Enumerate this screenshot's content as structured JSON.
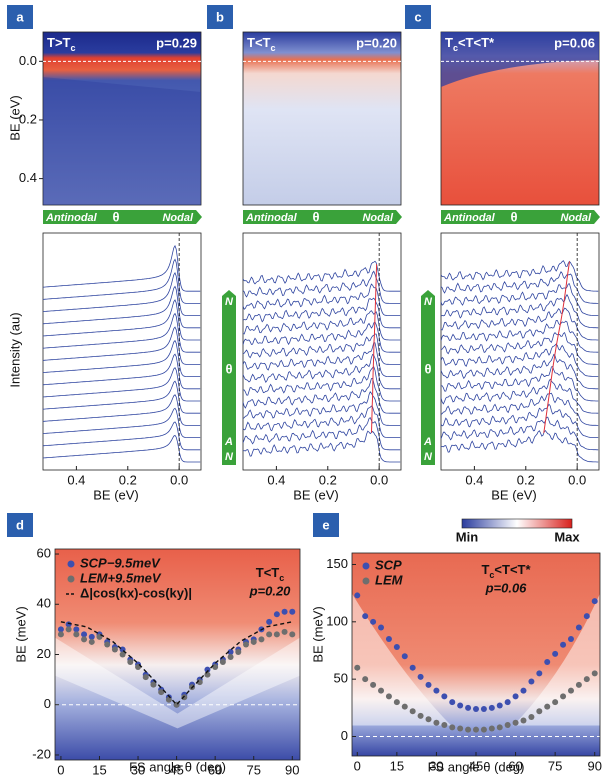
{
  "figure": {
    "top": {
      "y_label": "BE (eV)",
      "ylim": [
        -0.1,
        0.49
      ],
      "yticks": [
        {
          "value": 0,
          "label": "0.0"
        },
        {
          "value": 0.2,
          "label": "0.2"
        },
        {
          "value": 0.4,
          "label": "0.4"
        }
      ],
      "bar_labels": [
        "Antinodal",
        "θ",
        "Nodal"
      ],
      "panels": [
        {
          "letter": "a",
          "condition": [
            {
              "text": "T>T"
            },
            {
              "text": "c",
              "sub": true
            }
          ],
          "doping": "p=0.29"
        },
        {
          "letter": "b",
          "condition": [
            {
              "text": "T<T"
            },
            {
              "text": "c",
              "sub": true
            }
          ],
          "doping": "p=0.20"
        },
        {
          "letter": "c",
          "condition": [
            {
              "text": "T"
            },
            {
              "text": "c",
              "sub": true
            },
            {
              "text": "<T<T*"
            }
          ],
          "doping": "p=0.06"
        }
      ]
    },
    "middle": {
      "y_label": "Intensity (au)",
      "x_label": "BE (eV)",
      "xlim": [
        0.53,
        -0.085
      ],
      "xticks": [
        {
          "value": 0.4,
          "label": "0.4"
        },
        {
          "value": 0.2,
          "label": "0.2"
        },
        {
          "value": 0,
          "label": "0.0"
        }
      ],
      "bar_labels": [
        "N",
        "θ",
        "A",
        "N"
      ]
    }
  },
  "chart_data": [
    {
      "type": "scatter",
      "letter": "d",
      "x_label": "FS angle θ (deg)",
      "y_label": "BE (meV)",
      "xlim": [
        -2.3,
        93
      ],
      "ylim": [
        -22,
        62
      ],
      "xticks": [
        0,
        15,
        30,
        45,
        60,
        75,
        90
      ],
      "yticks": [
        -20,
        0,
        20,
        40,
        60
      ],
      "annotation": [
        {
          "text": "T<T"
        },
        {
          "text": "c",
          "sub": true
        }
      ],
      "doping": "p=0.20",
      "series": [
        {
          "name": "SCP−9.5meV",
          "color": "#3d4fb0",
          "mode": "markers",
          "x": [
            0,
            3,
            6,
            9,
            12,
            15,
            18,
            21,
            24,
            27,
            30,
            33,
            36,
            39,
            42,
            45,
            48,
            51,
            54,
            57,
            60,
            63,
            66,
            69,
            72,
            75,
            78,
            81,
            84,
            87,
            90
          ],
          "values": [
            30,
            32,
            30,
            28,
            27,
            28,
            25,
            23,
            22,
            18,
            16,
            12,
            9,
            6,
            3,
            0,
            4,
            8,
            10,
            14,
            16,
            18,
            21,
            22,
            25,
            26,
            30,
            33,
            36,
            37,
            37
          ]
        },
        {
          "name": "LEM+9.5meV",
          "color": "#6e6e6e",
          "mode": "markers",
          "x": [
            0,
            3,
            6,
            9,
            12,
            15,
            18,
            21,
            24,
            27,
            30,
            33,
            36,
            39,
            42,
            45,
            48,
            51,
            54,
            57,
            60,
            63,
            66,
            69,
            72,
            75,
            78,
            81,
            84,
            87,
            90
          ],
          "values": [
            28,
            30,
            28,
            26,
            25,
            27,
            24,
            22,
            20,
            17,
            15,
            11,
            8,
            5,
            2,
            0,
            3,
            7,
            9,
            12,
            15,
            17,
            19,
            21,
            24,
            25,
            26,
            28,
            28,
            29,
            28
          ]
        },
        {
          "name": "Δ|cos(kx)-cos(ky)|",
          "color": "#111111",
          "mode": "dashed-line",
          "x": [
            0,
            10,
            20,
            30,
            40,
            45,
            50,
            60,
            70,
            80,
            90
          ],
          "values": [
            33,
            31,
            25.3,
            16.5,
            5.7,
            0,
            5.7,
            16.5,
            25.3,
            31,
            33
          ]
        }
      ]
    },
    {
      "type": "scatter",
      "letter": "e",
      "x_label": "FS angle θ (deg)",
      "y_label": "BE (meV)",
      "xlim": [
        -2,
        92
      ],
      "ylim": [
        -17,
        160
      ],
      "xticks": [
        0,
        15,
        30,
        45,
        60,
        75,
        90
      ],
      "yticks": [
        0,
        50,
        100,
        150
      ],
      "annotation": [
        {
          "text": "T"
        },
        {
          "text": "c",
          "sub": true
        },
        {
          "text": "<T<T*"
        }
      ],
      "doping": "p=0.06",
      "colorbar_labels": [
        "Min",
        "Max"
      ],
      "series": [
        {
          "name": "SCP",
          "color": "#3d4fb0",
          "mode": "markers",
          "x": [
            0,
            3,
            6,
            9,
            12,
            15,
            18,
            21,
            24,
            27,
            30,
            33,
            36,
            39,
            42,
            45,
            48,
            51,
            54,
            57,
            60,
            63,
            66,
            69,
            72,
            75,
            78,
            81,
            84,
            87,
            90
          ],
          "values": [
            123,
            105,
            100,
            95,
            85,
            78,
            70,
            60,
            52,
            45,
            40,
            35,
            30,
            27,
            25,
            24,
            24,
            25,
            27,
            30,
            35,
            40,
            48,
            55,
            65,
            72,
            80,
            85,
            95,
            105,
            118
          ]
        },
        {
          "name": "LEM",
          "color": "#6e6e6e",
          "mode": "markers",
          "x": [
            0,
            3,
            6,
            9,
            12,
            15,
            18,
            21,
            24,
            27,
            30,
            33,
            36,
            39,
            42,
            45,
            48,
            51,
            54,
            57,
            60,
            63,
            66,
            69,
            72,
            75,
            78,
            81,
            84,
            87,
            90
          ],
          "values": [
            60,
            50,
            45,
            40,
            35,
            30,
            26,
            22,
            18,
            15,
            12,
            10,
            8,
            7,
            6,
            6,
            6,
            7,
            8,
            10,
            12,
            14,
            17,
            22,
            26,
            30,
            35,
            40,
            45,
            50,
            55
          ]
        }
      ]
    }
  ]
}
